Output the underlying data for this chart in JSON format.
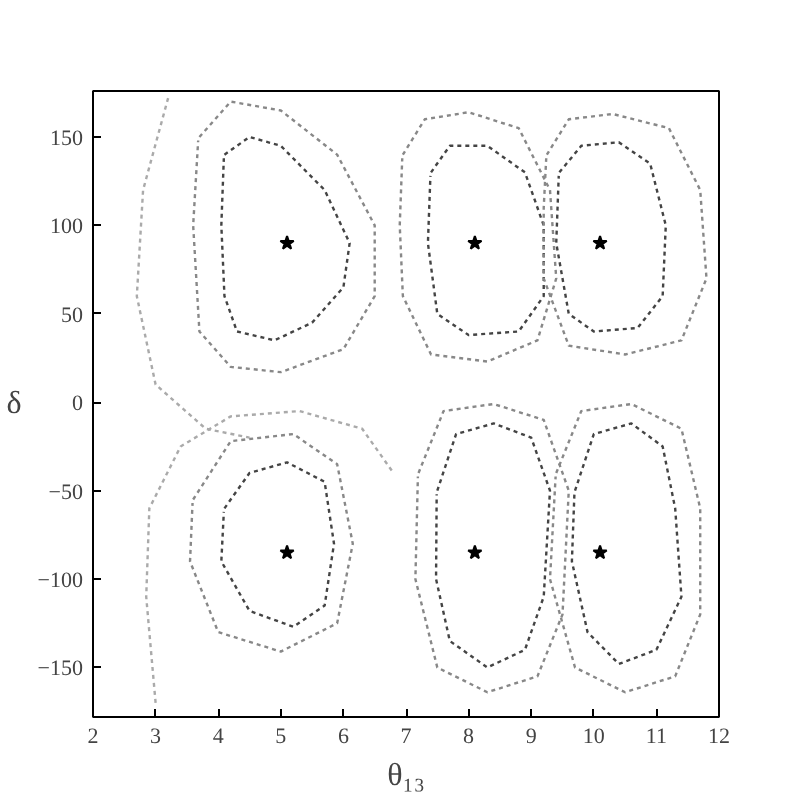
{
  "chart_data": {
    "type": "line",
    "xlabel": "θ₁₃",
    "ylabel": "δ",
    "xlim": [
      2,
      12
    ],
    "ylim": [
      -178,
      176
    ],
    "xticks": [
      2,
      3,
      4,
      5,
      6,
      7,
      8,
      9,
      10,
      11,
      12
    ],
    "yticks": [
      -150,
      -100,
      -50,
      0,
      50,
      100,
      150
    ],
    "line_style": "dotted",
    "series": [
      {
        "color": "#444444",
        "x": [
          4.1,
          4.5,
          5.0,
          5.7,
          6.1,
          6.0,
          5.5,
          4.9,
          4.3,
          4.1,
          4.05,
          4.09
        ],
        "values": [
          140,
          150,
          145,
          120,
          90,
          65,
          45,
          35,
          40,
          60,
          100,
          138
        ]
      },
      {
        "color": "#888888",
        "x": [
          3.7,
          4.2,
          5.0,
          5.9,
          6.5,
          6.5,
          6.0,
          5.0,
          4.2,
          3.7,
          3.6,
          3.68
        ],
        "values": [
          150,
          170,
          165,
          140,
          100,
          60,
          30,
          17,
          20,
          40,
          100,
          148
        ]
      },
      {
        "color": "#aaaaaa",
        "x": [
          3.2,
          2.8,
          2.7,
          3.0,
          3.8,
          4.5
        ],
        "values": [
          172,
          120,
          60,
          10,
          -15,
          -20
        ]
      },
      {
        "color": "#444444",
        "x": [
          7.4,
          7.7,
          8.3,
          8.9,
          9.2,
          9.2,
          8.8,
          8.0,
          7.5,
          7.35,
          7.39
        ],
        "values": [
          130,
          145,
          145,
          130,
          100,
          60,
          40,
          38,
          50,
          90,
          128
        ]
      },
      {
        "color": "#888888",
        "x": [
          6.95,
          7.3,
          8.0,
          8.8,
          9.3,
          9.4,
          9.1,
          8.3,
          7.4,
          6.95,
          6.9,
          6.94
        ],
        "values": [
          140,
          160,
          164,
          155,
          120,
          70,
          35,
          23,
          27,
          60,
          100,
          138
        ]
      },
      {
        "color": "#444444",
        "x": [
          9.45,
          9.8,
          10.4,
          10.9,
          11.15,
          11.1,
          10.7,
          10.0,
          9.6,
          9.4,
          9.44
        ],
        "values": [
          130,
          145,
          147,
          135,
          100,
          60,
          42,
          40,
          50,
          90,
          128
        ]
      },
      {
        "color": "#888888",
        "x": [
          9.25,
          9.6,
          10.3,
          11.2,
          11.7,
          11.8,
          11.4,
          10.5,
          9.6,
          9.2,
          9.2,
          9.24
        ],
        "values": [
          140,
          160,
          163,
          155,
          120,
          70,
          35,
          27,
          32,
          70,
          110,
          138
        ]
      },
      {
        "color": "#444444",
        "x": [
          4.1,
          4.5,
          5.1,
          5.7,
          5.85,
          5.7,
          5.2,
          4.5,
          4.05,
          4.09
        ],
        "values": [
          -60,
          -40,
          -34,
          -45,
          -80,
          -115,
          -127,
          -118,
          -90,
          -62
        ]
      },
      {
        "color": "#888888",
        "x": [
          3.6,
          4.2,
          5.2,
          5.9,
          6.15,
          5.9,
          5.0,
          4.0,
          3.55,
          3.59
        ],
        "values": [
          -55,
          -22,
          -18,
          -35,
          -80,
          -125,
          -141,
          -130,
          -90,
          -57
        ]
      },
      {
        "color": "#aaaaaa",
        "x": [
          3.0,
          2.85,
          2.9,
          3.4,
          4.2,
          5.3,
          6.3,
          6.8
        ],
        "values": [
          -170,
          -110,
          -60,
          -25,
          -8,
          -5,
          -15,
          -40
        ]
      },
      {
        "color": "#444444",
        "x": [
          7.5,
          7.8,
          8.4,
          9.0,
          9.3,
          9.2,
          8.9,
          8.3,
          7.7,
          7.48,
          7.49
        ],
        "values": [
          -50,
          -18,
          -12,
          -20,
          -50,
          -110,
          -140,
          -150,
          -135,
          -100,
          -52
        ]
      },
      {
        "color": "#888888",
        "x": [
          7.2,
          7.6,
          8.4,
          9.2,
          9.6,
          9.5,
          9.1,
          8.3,
          7.5,
          7.15,
          7.19
        ],
        "values": [
          -40,
          -5,
          -1,
          -10,
          -50,
          -120,
          -155,
          -164,
          -150,
          -100,
          -42
        ]
      },
      {
        "color": "#444444",
        "x": [
          9.7,
          10.0,
          10.6,
          11.1,
          11.3,
          11.4,
          11.0,
          10.4,
          9.9,
          9.65,
          9.69
        ],
        "values": [
          -50,
          -18,
          -12,
          -25,
          -60,
          -110,
          -140,
          -148,
          -130,
          -90,
          -52
        ]
      },
      {
        "color": "#888888",
        "x": [
          9.4,
          9.8,
          10.6,
          11.4,
          11.7,
          11.7,
          11.3,
          10.5,
          9.7,
          9.3,
          9.39
        ],
        "values": [
          -40,
          -5,
          -1,
          -15,
          -60,
          -120,
          -155,
          -164,
          -150,
          -100,
          -42
        ]
      },
      {
        "type": "scatter",
        "marker": "star",
        "color": "#000000",
        "x": [
          5.1,
          8.1,
          10.1,
          5.1,
          8.1,
          10.1
        ],
        "values": [
          90,
          90,
          90,
          -85,
          -85,
          -85
        ]
      }
    ]
  }
}
